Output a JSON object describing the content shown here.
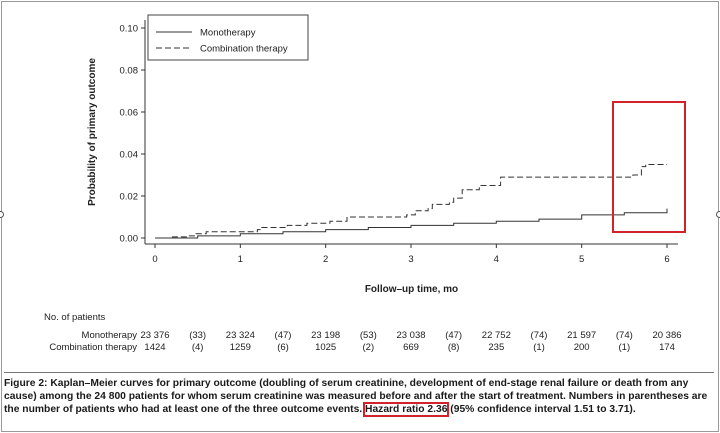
{
  "chart_data": {
    "type": "line",
    "title": "",
    "xlabel": "Follow–up time, mo",
    "ylabel": "Probability of primary outcome",
    "xlim": [
      0,
      6
    ],
    "ylim": [
      0,
      0.1
    ],
    "x_ticks": [
      "0",
      "1",
      "2",
      "3",
      "4",
      "5",
      "6"
    ],
    "y_ticks": [
      "0.00",
      "0.02",
      "0.04",
      "0.06",
      "0.08",
      "0.10"
    ],
    "legend_position": "top-left",
    "series": [
      {
        "name": "Monotherapy",
        "style": "solid",
        "x": [
          0,
          0.5,
          1,
          1.5,
          2,
          2.5,
          3,
          3.5,
          4,
          4.5,
          5,
          5.5,
          6
        ],
        "y": [
          0,
          0.001,
          0.002,
          0.003,
          0.004,
          0.005,
          0.006,
          0.007,
          0.008,
          0.009,
          0.011,
          0.012,
          0.014
        ]
      },
      {
        "name": "Combination therapy",
        "style": "dashed",
        "x": [
          0,
          0.18,
          0.38,
          0.48,
          0.6,
          1.2,
          1.25,
          1.55,
          1.78,
          1.92,
          2.05,
          2.25,
          2.95,
          3.05,
          3.2,
          3.25,
          3.45,
          3.5,
          3.6,
          3.8,
          4.05,
          4.1,
          5.15,
          5.55,
          5.6,
          5.62,
          5.7,
          5.75,
          6.0
        ],
        "y": [
          0,
          0.0005,
          0.001,
          0.002,
          0.003,
          0.004,
          0.005,
          0.006,
          0.007,
          0.007,
          0.008,
          0.01,
          0.011,
          0.013,
          0.014,
          0.016,
          0.017,
          0.019,
          0.023,
          0.025,
          0.029,
          0.029,
          0.029,
          0.029,
          0.03,
          0.03,
          0.034,
          0.035,
          0.035
        ]
      }
    ],
    "highlight_color": "#d2232a"
  },
  "risk_table": {
    "header": "No. of patients",
    "rows": [
      {
        "label": "Monotherapy",
        "cells": [
          "23 376",
          "(33)",
          "23 324",
          "(47)",
          "23 198",
          "(53)",
          "23 038",
          "(47)",
          "22 752",
          "(74)",
          "21 597",
          "(74)",
          "20 386"
        ]
      },
      {
        "label": "Combination therapy",
        "cells": [
          "1424",
          "(4)",
          "1259",
          "(6)",
          "1025",
          "(2)",
          "669",
          "(8)",
          "235",
          "(1)",
          "200",
          "(1)",
          "174"
        ]
      }
    ]
  },
  "caption": {
    "part1": "Figure 2: Kaplan–Meier curves for primary outcome (doubling of serum creatinine, development of end-stage renal failure or death from any cause) among the 24 800 patients for whom serum creatinine was measured before and after the start of treatment. Numbers in parentheses are the number of patients who had at least one of the three outcome events. ",
    "highlight": "Hazard ratio 2.36",
    "part2": " (95% confidence interval 1.51 to 3.71)."
  }
}
